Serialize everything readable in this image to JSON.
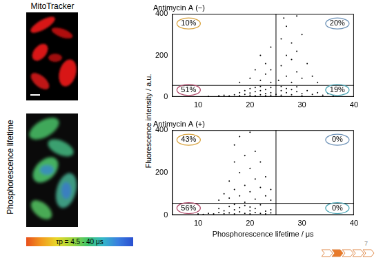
{
  "chart_data": [
    {
      "type": "scatter",
      "title": "Antimycin A (−)",
      "x": [
        12,
        14,
        15,
        16,
        17,
        18,
        18,
        19,
        19,
        20,
        20,
        20,
        21,
        21,
        21,
        22,
        22,
        22,
        23,
        23,
        23,
        24,
        24,
        24,
        25,
        26,
        26,
        26,
        27,
        27,
        28,
        28,
        29,
        29,
        30,
        30,
        31,
        32,
        33,
        34,
        35,
        36,
        18,
        20,
        21,
        22,
        22,
        23,
        23,
        24,
        24,
        24,
        25.5,
        26,
        26,
        27,
        27,
        27,
        28,
        28,
        28,
        29,
        29,
        30,
        30,
        31,
        32,
        33,
        26.5,
        29
      ],
      "values": [
        3,
        5,
        8,
        4,
        10,
        6,
        20,
        12,
        30,
        8,
        18,
        40,
        5,
        25,
        45,
        10,
        30,
        50,
        15,
        35,
        5,
        20,
        45,
        8,
        12,
        30,
        50,
        8,
        20,
        40,
        10,
        35,
        25,
        48,
        15,
        5,
        30,
        12,
        20,
        8,
        15,
        5,
        70,
        90,
        130,
        80,
        200,
        110,
        160,
        70,
        240,
        130,
        80,
        150,
        280,
        100,
        200,
        340,
        70,
        180,
        260,
        120,
        220,
        90,
        300,
        160,
        100,
        70,
        380,
        390
      ],
      "color": "#000000",
      "marker": "circle",
      "xlim": [
        5,
        40
      ],
      "xticks": [
        10,
        20,
        30,
        40
      ],
      "ylim": [
        0,
        400
      ],
      "yticks": [
        0,
        200,
        400
      ],
      "grid": false,
      "quadrant_lines": {
        "x": 25,
        "y": 55
      },
      "annotations": [
        {
          "value": 10,
          "label": "10%",
          "position": "upper left",
          "color": "#d9a441"
        },
        {
          "value": 20,
          "label": "20%",
          "position": "upper right",
          "color": "#6f93b8"
        },
        {
          "value": 51,
          "label": "51%",
          "position": "lower left",
          "color": "#b04a6a"
        },
        {
          "value": 19,
          "label": "19%",
          "position": "lower right",
          "color": "#48a3b3"
        }
      ]
    },
    {
      "type": "scatter",
      "title": "Antimycin A (+)",
      "x_label": "Phosphorescence lifetime / μs",
      "x": [
        10,
        11,
        12,
        13,
        14,
        14,
        15,
        15,
        16,
        16,
        17,
        17,
        17,
        18,
        18,
        19,
        19,
        20,
        20,
        20,
        21,
        21,
        22,
        22,
        23,
        23,
        24,
        24,
        14,
        15,
        16,
        16,
        17,
        17,
        17,
        18,
        18,
        18,
        19,
        19,
        19,
        20,
        20,
        20,
        21,
        21,
        21,
        22,
        22,
        23,
        23,
        24,
        24
      ],
      "values": [
        5,
        3,
        8,
        5,
        12,
        30,
        6,
        20,
        40,
        10,
        5,
        25,
        50,
        15,
        35,
        8,
        45,
        20,
        5,
        38,
        12,
        30,
        8,
        48,
        18,
        5,
        25,
        10,
        70,
        100,
        80,
        160,
        120,
        250,
        330,
        90,
        200,
        370,
        140,
        280,
        60,
        110,
        220,
        390,
        170,
        300,
        75,
        130,
        250,
        90,
        180,
        70,
        120
      ],
      "color": "#000000",
      "marker": "circle",
      "xlim": [
        5,
        40
      ],
      "xticks": [
        10,
        20,
        30,
        40
      ],
      "ylim": [
        0,
        400
      ],
      "yticks": [
        0,
        200,
        400
      ],
      "grid": false,
      "quadrant_lines": {
        "x": 25,
        "y": 55
      },
      "annotations": [
        {
          "value": 43,
          "label": "43%",
          "position": "upper left",
          "color": "#d9a441"
        },
        {
          "value": 0,
          "label": "0%",
          "position": "upper right",
          "color": "#6f93b8"
        },
        {
          "value": 56,
          "label": "56%",
          "position": "lower left",
          "color": "#b04a6a"
        },
        {
          "value": 0,
          "label": "0%",
          "position": "lower right",
          "color": "#48a3b3"
        }
      ]
    }
  ],
  "y_label": "Fluorescence intensity / a.u.",
  "image_labels": {
    "top": "MitoTracker",
    "side": "Phosphorescence lifetime",
    "colorbar": "τp = 4.5 - 40 μs"
  },
  "page_number": "7"
}
